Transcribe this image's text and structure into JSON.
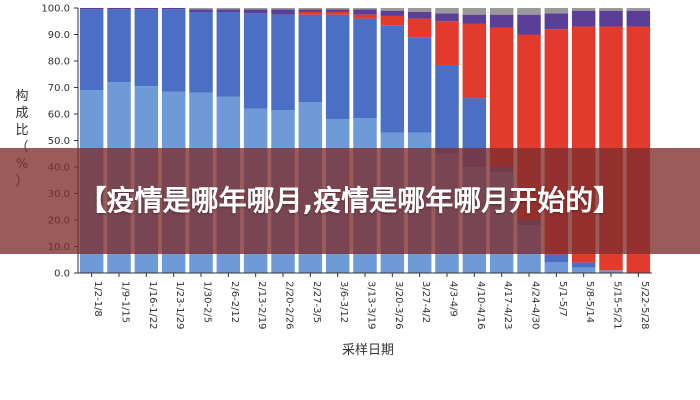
{
  "banner": {
    "title": "【疫情是哪年哪月,疫情是哪年哪月开始的】"
  },
  "chart_data": {
    "type": "bar",
    "stacked": true,
    "ylabel": "构成比（%）",
    "xlabel": "采样日期",
    "ylim": [
      0,
      100
    ],
    "yticks": [
      "0.0",
      "10.0",
      "20.0",
      "30.0",
      "40.0",
      "50.0",
      "60.0",
      "70.0",
      "80.0",
      "90.0",
      "100.0"
    ],
    "categories": [
      "1/2-1/8",
      "1/9-1/15",
      "1/16-1/22",
      "1/23-1/29",
      "1/30-2/5",
      "2/6-2/12",
      "2/13-2/19",
      "2/20-2/26",
      "2/27-3/5",
      "3/6-3/12",
      "3/13-3/19",
      "3/20-3/26",
      "3/27-4/2",
      "4/3-4/9",
      "4/10-4/16",
      "4/17-4/23",
      "4/24-4/30",
      "5/1-5/7",
      "5/8-5/14",
      "5/15-5/21",
      "5/22-5/28"
    ],
    "series": [
      {
        "color": "#6e9bd8",
        "values": [
          69,
          72,
          70.5,
          68.5,
          68,
          66.5,
          62,
          61.5,
          64.5,
          58,
          58.5,
          53,
          53,
          45,
          40,
          38,
          18,
          4,
          2,
          1,
          0
        ]
      },
      {
        "color": "#4a6fc4",
        "values": [
          30.5,
          27.5,
          29,
          31,
          30.5,
          32,
          36,
          36,
          33,
          39.5,
          37.5,
          40.5,
          36,
          33.5,
          26,
          2,
          2,
          3,
          2,
          0,
          0
        ]
      },
      {
        "color": "#e23b2e",
        "values": [
          0,
          0,
          0,
          0,
          0,
          0,
          0,
          0,
          1,
          1,
          1.5,
          3.5,
          7,
          16.5,
          28,
          52.5,
          70,
          85,
          89,
          92,
          93
        ]
      },
      {
        "color": "#5b3f96",
        "values": [
          0.5,
          0.5,
          0.5,
          0.5,
          1,
          1,
          1.5,
          2,
          1,
          1,
          2,
          2,
          2.5,
          3,
          3.5,
          5,
          7.5,
          6,
          6,
          6,
          6
        ]
      },
      {
        "color": "#9a9a9a",
        "values": [
          0,
          0,
          0,
          0,
          0.5,
          0.5,
          0.5,
          0.5,
          0.5,
          0.5,
          0.5,
          1,
          1.5,
          2,
          2.5,
          2.5,
          2.5,
          2,
          1,
          1,
          1
        ]
      }
    ],
    "legend": "none",
    "grid": false
  }
}
